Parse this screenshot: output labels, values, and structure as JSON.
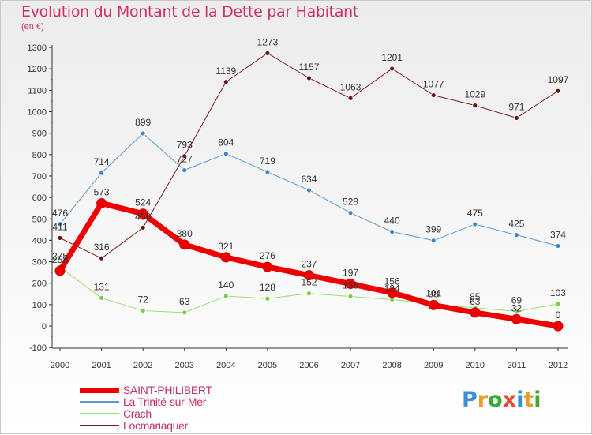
{
  "title": "Evolution du Montant de la Dette par Habitant",
  "unit_label": "(en €)",
  "logo": {
    "text": "Proxiti",
    "letter_colors": [
      "#3a8fd8",
      "#e8a02a",
      "#3aa83a",
      "#e84a2a",
      "#3a8fd8",
      "#e8a02a",
      "#3aa83a"
    ]
  },
  "colors": {
    "title": "#d0306a",
    "axis": "#333333",
    "tick_text": "#333333",
    "gridline": "#dddddd",
    "red_tick": "#d02020"
  },
  "chart_data": {
    "type": "line",
    "title": "Evolution du Montant de la Dette par Habitant",
    "subtitle": "(en €)",
    "x": [
      "2000",
      "2001",
      "2002",
      "2003",
      "2004",
      "2005",
      "2006",
      "2007",
      "2008",
      "2009",
      "2010",
      "2011",
      "2012"
    ],
    "ylim": [
      -100,
      1300
    ],
    "yticks": [
      -100,
      0,
      100,
      200,
      300,
      400,
      500,
      600,
      700,
      800,
      900,
      1000,
      1100,
      1200,
      1300
    ],
    "grid": false,
    "legend_position": "bottom-left",
    "series": [
      {
        "name": "Locmariaquer",
        "color": "#7a1a1a",
        "marker": "#6b1414",
        "width": 1,
        "values": [
          411,
          316,
          459,
          793,
          1139,
          1273,
          1157,
          1063,
          1201,
          1077,
          1029,
          971,
          1097
        ],
        "labels": [
          "411",
          "316",
          "459",
          "793",
          "1139",
          "1273",
          "1157",
          "1063",
          "1201",
          "1077",
          "1029",
          "971",
          "1097"
        ]
      },
      {
        "name": "La Trinité-sur-Mer",
        "color": "#5a9ad0",
        "marker": "#3a86c8",
        "width": 1,
        "values": [
          476,
          714,
          899,
          727,
          804,
          719,
          634,
          528,
          440,
          399,
          475,
          425,
          374
        ],
        "labels": [
          "476",
          "714",
          "899",
          "727",
          "804",
          "719",
          "634",
          "528",
          "440",
          "399",
          "475",
          "425",
          "374"
        ]
      },
      {
        "name": "Crach",
        "color": "#9ae070",
        "marker": "#7acc40",
        "width": 1,
        "values": [
          275,
          131,
          72,
          63,
          140,
          128,
          152,
          138,
          124,
          101,
          85,
          69,
          103
        ],
        "labels": [
          "275",
          "131",
          "72",
          "63",
          "140",
          "128",
          "152",
          "138",
          "124",
          "101",
          "85",
          "69",
          "103"
        ]
      },
      {
        "name": "SAINT-PHILIBERT",
        "color": "#ee0000",
        "marker": "#ee0000",
        "width": 7,
        "values": [
          258,
          573,
          524,
          380,
          321,
          276,
          237,
          197,
          156,
          98,
          63,
          32,
          0
        ],
        "labels": [
          "258",
          "573",
          "524",
          "380",
          "321",
          "276",
          "237",
          "197",
          "156",
          "98",
          "63",
          "32",
          "0"
        ]
      }
    ],
    "legend": [
      "SAINT-PHILIBERT",
      "La Trinité-sur-Mer",
      "Crach",
      "Locmariaquer"
    ]
  }
}
